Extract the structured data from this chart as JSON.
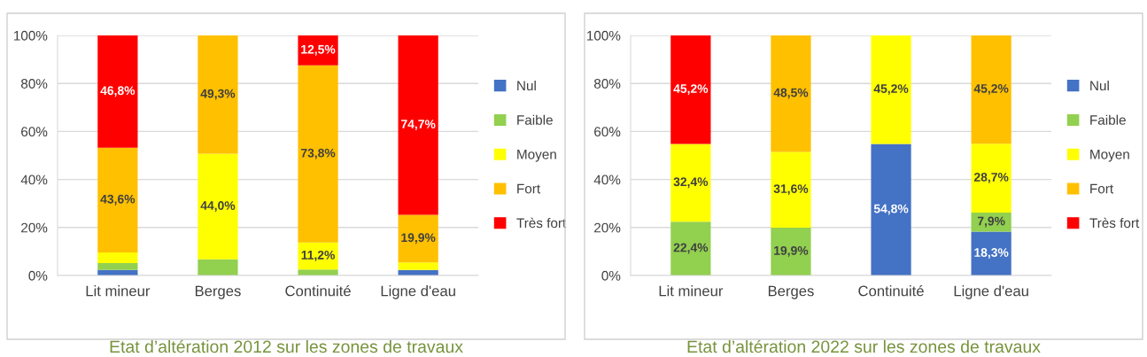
{
  "chart_data": [
    {
      "type": "bar",
      "stacked": true,
      "title": "Etat d’altération 2012 sur les zones de travaux",
      "categories": [
        "Lit mineur",
        "Berges",
        "Continuité",
        "Ligne d'eau"
      ],
      "ylim": [
        0,
        100
      ],
      "yticks": [
        {
          "value": 0,
          "label": "0%"
        },
        {
          "value": 20,
          "label": "20%"
        },
        {
          "value": 40,
          "label": "40%"
        },
        {
          "value": 60,
          "label": "60%"
        },
        {
          "value": 80,
          "label": "80%"
        },
        {
          "value": 100,
          "label": "100%"
        }
      ],
      "grid": "y",
      "legend": "right",
      "series": [
        {
          "name": "Nul",
          "color": "#4472c4",
          "values": [
            2.3,
            0,
            0,
            2.3
          ],
          "value_labels": [
            null,
            null,
            null,
            null
          ]
        },
        {
          "name": "Faible",
          "color": "#92d050",
          "values": [
            2.9,
            6.7,
            2.5,
            0
          ],
          "value_labels": [
            null,
            null,
            null,
            null
          ]
        },
        {
          "name": "Moyen",
          "color": "#ffff00",
          "values": [
            4.4,
            44.0,
            11.2,
            3.1
          ],
          "value_labels": [
            null,
            "44,0%",
            "11,2%",
            null
          ]
        },
        {
          "name": "Fort",
          "color": "#ffc000",
          "values": [
            43.6,
            49.3,
            73.8,
            19.9
          ],
          "value_labels": [
            "43,6%",
            "49,3%",
            "73,8%",
            "19,9%"
          ]
        },
        {
          "name": "Très fort",
          "color": "#ff0000",
          "values": [
            46.8,
            0,
            12.5,
            74.7
          ],
          "value_labels": [
            "46,8%",
            null,
            "12,5%",
            "74,7%"
          ]
        }
      ]
    },
    {
      "type": "bar",
      "stacked": true,
      "title": "Etat d’altération 2022 sur les zones de travaux",
      "categories": [
        "Lit mineur",
        "Berges",
        "Continuité",
        "Ligne d'eau"
      ],
      "ylim": [
        0,
        100
      ],
      "yticks": [
        {
          "value": 0,
          "label": "0%"
        },
        {
          "value": 20,
          "label": "20%"
        },
        {
          "value": 40,
          "label": "40%"
        },
        {
          "value": 60,
          "label": "60%"
        },
        {
          "value": 80,
          "label": "80%"
        },
        {
          "value": 100,
          "label": "100%"
        }
      ],
      "grid": "y",
      "legend": "right",
      "series": [
        {
          "name": "Nul",
          "color": "#4472c4",
          "values": [
            0,
            0,
            54.8,
            18.3
          ],
          "value_labels": [
            null,
            null,
            "54,8%",
            "18,3%"
          ]
        },
        {
          "name": "Faible",
          "color": "#92d050",
          "values": [
            22.4,
            19.9,
            0,
            7.9
          ],
          "value_labels": [
            "22,4%",
            "19,9%",
            null,
            "7,9%"
          ]
        },
        {
          "name": "Moyen",
          "color": "#ffff00",
          "values": [
            32.4,
            31.6,
            45.2,
            28.7
          ],
          "value_labels": [
            "32,4%",
            "31,6%",
            "45,2%",
            "28,7%"
          ]
        },
        {
          "name": "Fort",
          "color": "#ffc000",
          "values": [
            0,
            48.5,
            0,
            45.2
          ],
          "value_labels": [
            null,
            "48,5%",
            null,
            "45,2%"
          ]
        },
        {
          "name": "Très fort",
          "color": "#ff0000",
          "values": [
            45.2,
            0,
            0,
            0
          ],
          "value_labels": [
            "45,2%",
            null,
            null,
            null
          ]
        }
      ]
    }
  ]
}
